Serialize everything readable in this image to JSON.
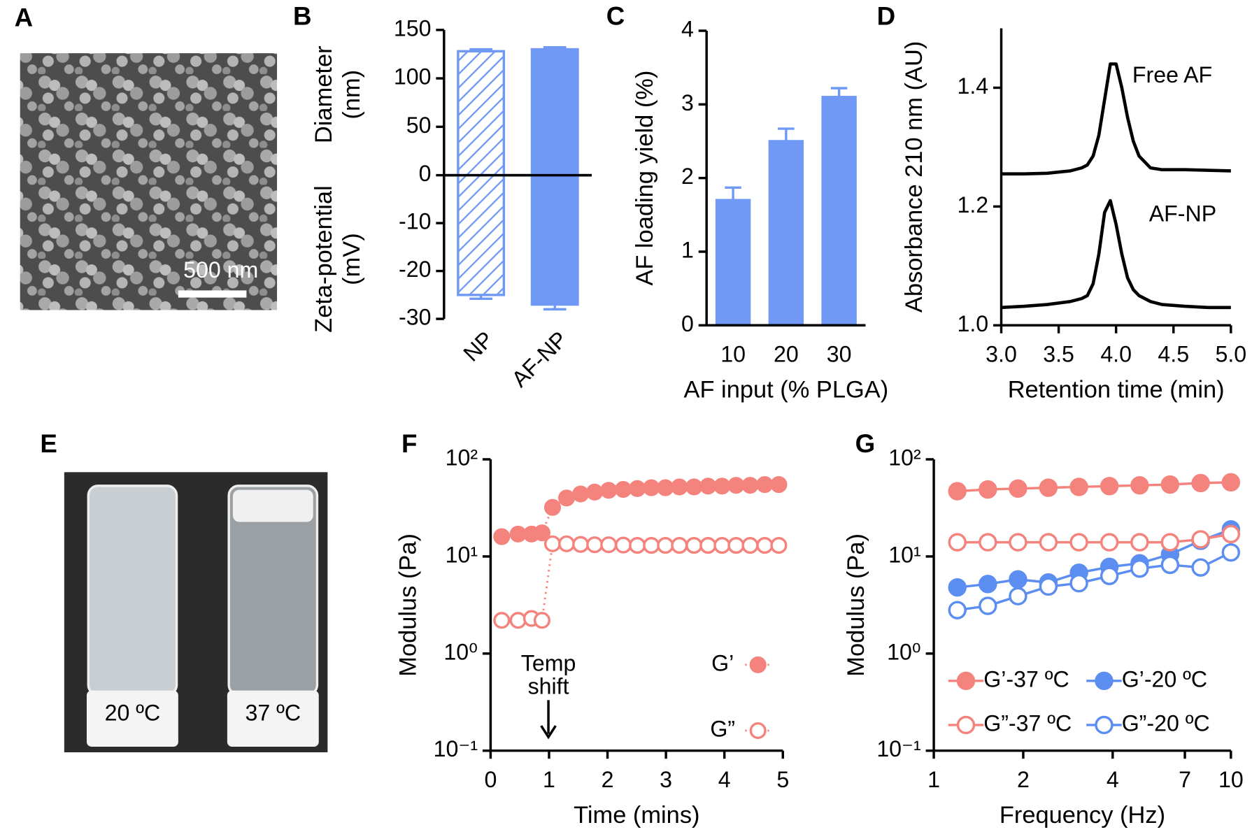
{
  "images": [
    {
      "panel": "A",
      "scale_bar": "500 nm"
    },
    {
      "panel": "E",
      "labels": [
        "20 ºC",
        "37 ºC"
      ]
    }
  ],
  "chart_data": [
    {
      "type": "bar",
      "panel": "B",
      "categories": [
        "NP",
        "AF-NP"
      ],
      "patterns": [
        "hatch",
        "solid"
      ],
      "color": "#7099f5",
      "ylabel": [
        "Diameter",
        "(nm)"
      ],
      "y2label": [
        "Zeta-potential",
        "(mV)"
      ],
      "series": [
        {
          "values": [
            128,
            130
          ],
          "errors": [
            2,
            2
          ]
        },
        {
          "axis": "y2",
          "values": [
            -25,
            -27
          ],
          "errors": [
            0.8,
            1
          ]
        }
      ],
      "ylim": [
        0,
        150
      ],
      "yticks": [
        0,
        50,
        100,
        150
      ],
      "y2lim": [
        -30,
        0
      ],
      "y2ticks": [
        -10,
        -20,
        -30
      ]
    },
    {
      "type": "bar",
      "panel": "C",
      "categories": [
        "10",
        "20",
        "30"
      ],
      "patterns": [
        "solid",
        "solid",
        "solid"
      ],
      "color": "#7099f5",
      "xlabel": "AF input (% PLGA)",
      "ylabel": "AF loading yield (%)",
      "series": [
        {
          "values": [
            1.7,
            2.5,
            3.1
          ],
          "errors": [
            0.17,
            0.17,
            0.12
          ]
        }
      ],
      "ylim": [
        0,
        4
      ],
      "yticks": [
        0,
        1,
        2,
        3,
        4
      ]
    },
    {
      "type": "line",
      "panel": "D",
      "xlabel": "Retention time (min)",
      "ylabel": "Absorbance 210 nm (AU)",
      "x": [
        3.0,
        3.2,
        3.4,
        3.6,
        3.7,
        3.75,
        3.8,
        3.85,
        3.9,
        3.95,
        4.0,
        4.05,
        4.1,
        4.15,
        4.2,
        4.3,
        4.4,
        4.6,
        4.8,
        5.0
      ],
      "series": [
        {
          "name": "Free AF",
          "color": "#000000",
          "values": [
            1.255,
            1.255,
            1.256,
            1.26,
            1.265,
            1.27,
            1.285,
            1.32,
            1.38,
            1.44,
            1.44,
            1.4,
            1.35,
            1.31,
            1.285,
            1.265,
            1.262,
            1.262,
            1.261,
            1.26
          ]
        },
        {
          "name": "AF-NP",
          "color": "#000000",
          "values": [
            1.03,
            1.032,
            1.035,
            1.04,
            1.045,
            1.05,
            1.07,
            1.12,
            1.19,
            1.21,
            1.17,
            1.12,
            1.08,
            1.06,
            1.05,
            1.04,
            1.035,
            1.032,
            1.03,
            1.03
          ]
        }
      ],
      "xlim": [
        3.0,
        5.0
      ],
      "xticks": [
        {
          "value": 3.0,
          "label": "3.0"
        },
        3.5,
        {
          "value": 4.0,
          "label": "4.0"
        },
        4.5,
        {
          "value": 5.0,
          "label": "5.0"
        }
      ],
      "ylim": [
        1.0,
        1.5
      ],
      "yticks": [
        {
          "value": 1.0,
          "label": "1.0"
        },
        1.2,
        1.4
      ]
    },
    {
      "type": "scatter",
      "panel": "F",
      "line": "dotted",
      "xlabel": "Time (mins)",
      "ylabel": "Modulus (Pa)",
      "annotation": [
        "Temp",
        "shift"
      ],
      "x": [
        0.19,
        0.47,
        0.7,
        0.88,
        1.06,
        1.3,
        1.54,
        1.78,
        2.02,
        2.27,
        2.51,
        2.75,
        2.99,
        3.23,
        3.48,
        3.72,
        3.96,
        4.2,
        4.44,
        4.69,
        4.93
      ],
      "series": [
        {
          "name": "G’",
          "color": "#f4837d",
          "filled": true,
          "values": [
            16,
            17,
            17,
            17.5,
            32,
            40,
            44,
            46,
            48,
            49,
            50,
            51,
            51,
            52,
            52,
            53,
            53,
            54,
            54,
            55,
            55
          ]
        },
        {
          "name": "G”",
          "color": "#f4837d",
          "filled": false,
          "values": [
            2.2,
            2.2,
            2.3,
            2.2,
            13.5,
            13.5,
            13.3,
            13.2,
            13.2,
            13.1,
            13,
            13,
            13,
            13,
            13,
            13,
            13,
            13,
            13,
            13,
            13
          ]
        }
      ],
      "xlim": [
        0,
        5
      ],
      "xticks": [
        0,
        1,
        2,
        3,
        4,
        5
      ],
      "ylog": true,
      "ylim": [
        0.1,
        100
      ],
      "yticks": [
        {
          "value": 0.1,
          "label": "10⁻¹"
        },
        {
          "value": 1,
          "label": "10⁰"
        },
        {
          "value": 10,
          "label": "10¹"
        },
        {
          "value": 100,
          "label": "10²"
        }
      ]
    },
    {
      "type": "scatter",
      "panel": "G",
      "line": "solid",
      "xlabel": "Frequency (Hz)",
      "ylabel": "Modulus (Pa)",
      "x": [
        1.2,
        1.52,
        1.92,
        2.43,
        3.08,
        3.9,
        4.93,
        6.24,
        7.91,
        10
      ],
      "series": [
        {
          "name": "G’-37 ºC",
          "color": "#f4837d",
          "filled": true,
          "values": [
            47,
            49,
            50,
            51,
            52,
            53,
            54,
            55,
            57,
            58
          ]
        },
        {
          "name": "G’-20 ºC",
          "color": "#5b8ef0",
          "filled": true,
          "values": [
            4.8,
            5.2,
            5.8,
            5.4,
            6.8,
            7.8,
            8.5,
            10.5,
            14.5,
            19
          ]
        },
        {
          "name": "G”-37 ºC",
          "color": "#f4837d",
          "filled": false,
          "values": [
            14,
            14,
            14,
            14,
            14,
            14,
            14,
            14,
            15,
            17
          ]
        },
        {
          "name": "G”-20 ºC",
          "color": "#5b8ef0",
          "filled": false,
          "values": [
            2.8,
            3.1,
            3.9,
            4.9,
            5.3,
            6.3,
            7.5,
            8.2,
            7.7,
            11
          ]
        }
      ],
      "xlog": true,
      "xlim": [
        1,
        10
      ],
      "xticks": [
        1,
        2,
        4,
        7,
        10
      ],
      "ylog": true,
      "ylim": [
        0.1,
        100
      ],
      "yticks": [
        {
          "value": 0.1,
          "label": "10⁻¹"
        },
        {
          "value": 1,
          "label": "10⁰"
        },
        {
          "value": 10,
          "label": "10¹"
        },
        {
          "value": 100,
          "label": "10²"
        }
      ]
    }
  ]
}
